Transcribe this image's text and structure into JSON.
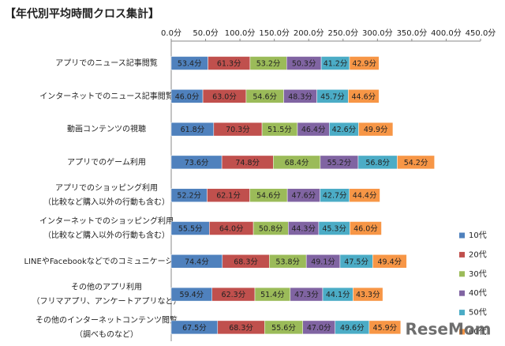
{
  "chart_data": {
    "type": "stacked-bar-horizontal",
    "title": "【年代別平均時間クロス集計】",
    "watermark": "ReseMom",
    "categories": [
      [
        "アプリでのニュース記事閲覧"
      ],
      [
        "インターネットでのニュース記事閲覧"
      ],
      [
        "動画コンテンツの視聴"
      ],
      [
        "アプリでのゲーム利用"
      ],
      [
        "アプリでのショッピング利用",
        "（比較など購入以外の行動も含む）"
      ],
      [
        "インターネットでのショッピング利用",
        "（比較など購入以外の行動も含む）"
      ],
      [
        "LINEやFacebookなどでのコミュニケーション"
      ],
      [
        "その他のアプリ利用",
        "（フリマアプリ、アンケートアプリなど）"
      ],
      [
        "その他のインターネットコンテンツ閲覧",
        "（調べものなど）"
      ]
    ],
    "series": [
      {
        "name": "10代",
        "color": "#4f81bd",
        "values": [
          53.4,
          46.0,
          61.8,
          73.6,
          52.2,
          55.5,
          74.4,
          59.4,
          67.5
        ],
        "value_labels": [
          "53.4分",
          "46.0分",
          "61.8分",
          "73.6分",
          "52.2分",
          "55.5分",
          "74.4分",
          "59.4分",
          "67.5分"
        ]
      },
      {
        "name": "20代",
        "color": "#c0504d",
        "values": [
          61.3,
          63.0,
          70.3,
          74.8,
          62.1,
          64.0,
          68.3,
          62.3,
          68.3
        ],
        "value_labels": [
          "61.3分",
          "63.0分",
          "70.3分",
          "74.8分",
          "62.1分",
          "64.0分",
          "68.3分",
          "62.3分",
          "68.3分"
        ]
      },
      {
        "name": "30代",
        "color": "#9bbb59",
        "values": [
          53.2,
          54.6,
          51.5,
          68.4,
          54.6,
          50.8,
          53.8,
          51.4,
          55.6
        ],
        "value_labels": [
          "53.2分",
          "54.6分",
          "51.5分",
          "68.4分",
          "54.6分",
          "50.8分",
          "53.8分",
          "51.4分",
          "55.6分"
        ]
      },
      {
        "name": "40代",
        "color": "#8064a2",
        "values": [
          50.3,
          48.3,
          46.4,
          55.2,
          47.6,
          44.3,
          49.1,
          47.3,
          47.0
        ],
        "value_labels": [
          "50.3分",
          "48.3分",
          "46.4分",
          "55.2分",
          "47.6分",
          "44.3分",
          "49.1分",
          "47.3分",
          "47.0分"
        ]
      },
      {
        "name": "50代",
        "color": "#4bacc6",
        "values": [
          41.2,
          45.7,
          42.6,
          56.8,
          42.7,
          45.3,
          47.5,
          44.1,
          49.6
        ],
        "value_labels": [
          "41.2分",
          "45.7分",
          "42.6分",
          "56.8分",
          "42.7分",
          "45.3分",
          "47.5分",
          "44.1分",
          "49.6分"
        ]
      },
      {
        "name": "60代",
        "color": "#f79646",
        "values": [
          42.9,
          44.6,
          49.9,
          54.2,
          44.4,
          46.0,
          49.4,
          43.3,
          45.9
        ],
        "value_labels": [
          "42.9分",
          "44.6分",
          "49.9分",
          "54.2分",
          "44.4分",
          "46.0分",
          "49.4分",
          "43.3分",
          "45.9分"
        ]
      }
    ],
    "xlim": [
      0,
      450
    ],
    "xticks": [
      {
        "value": 0,
        "label": "0.0分"
      },
      {
        "value": 50,
        "label": "50.0分"
      },
      {
        "value": 100,
        "label": "100.0分"
      },
      {
        "value": 150,
        "label": "150.0分"
      },
      {
        "value": 200,
        "label": "200.0分"
      },
      {
        "value": 250,
        "label": "250.0分"
      },
      {
        "value": 300,
        "label": "300.0分"
      },
      {
        "value": 350,
        "label": "350.0分"
      },
      {
        "value": 400,
        "label": "400.0分"
      },
      {
        "value": 450,
        "label": "450.0分"
      }
    ],
    "grid": false,
    "legend": "right"
  }
}
